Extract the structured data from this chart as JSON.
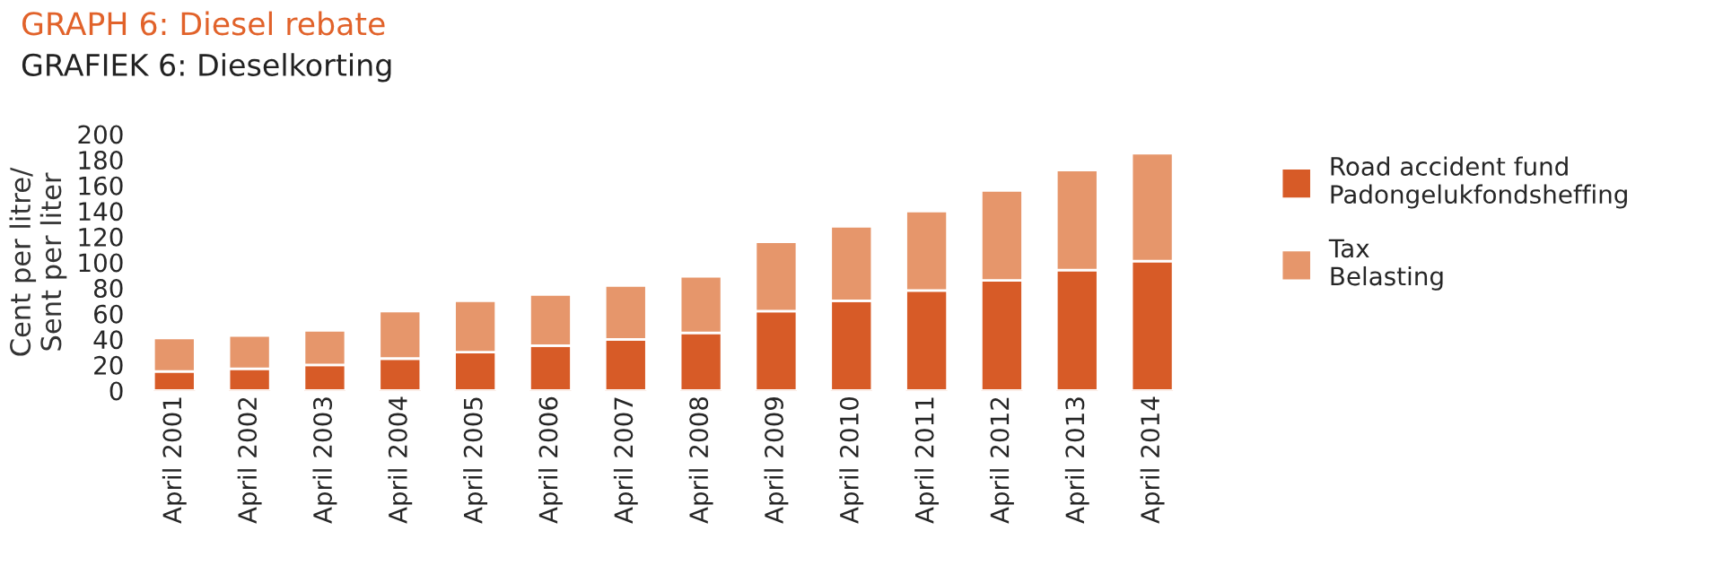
{
  "chart_data": {
    "type": "bar",
    "title": "GRAPH 6: Diesel rebate",
    "subtitle": "GRAFIEK 6: Dieselkorting",
    "ylabel": "Cent per litre/\nSent per liter",
    "categories": [
      "April 2001",
      "April 2002",
      "April 2003",
      "April 2004",
      "April 2005",
      "April 2006",
      "April 2007",
      "April 2008",
      "April 2009",
      "April 2010",
      "April 2011",
      "April 2012",
      "April 2013",
      "April 2014"
    ],
    "stacked": true,
    "series": [
      {
        "name": "Road accident fund\nPadongelukfondsheffing",
        "color": "#d75b27",
        "values": [
          15,
          17,
          20,
          25,
          30,
          35,
          40,
          45,
          62,
          70,
          78,
          86,
          94,
          101
        ]
      },
      {
        "name": "Tax\nBelasting",
        "color": "#e6966b",
        "values": [
          26,
          26,
          27,
          37,
          40,
          40,
          42,
          44,
          54,
          58,
          62,
          70,
          78,
          84
        ]
      }
    ],
    "ylim": [
      0,
      200
    ],
    "yticks": [
      0,
      20,
      40,
      60,
      80,
      100,
      120,
      140,
      160,
      180,
      200
    ],
    "grid": false,
    "legend": "right"
  }
}
